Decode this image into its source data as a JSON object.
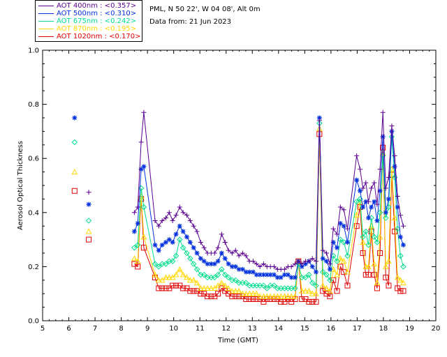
{
  "info": {
    "station": "PML, N 50 22', W 04 08', Alt 0m",
    "date_line": "Data from: 21 Jun 2023"
  },
  "colors": {
    "s400": "#5a0090",
    "s500": "#0030e0",
    "s675": "#00dc8c",
    "s870": "#ffd800",
    "s1020": "#e00000"
  },
  "chart_data": {
    "type": "line",
    "title": "",
    "xlabel": "Time (GMT)",
    "ylabel": "Aerosol Optical Thickness",
    "xlim": [
      5,
      20
    ],
    "ylim": [
      0.0,
      1.0
    ],
    "xticks": [
      5,
      6,
      7,
      8,
      9,
      10,
      11,
      12,
      13,
      14,
      15,
      16,
      17,
      18,
      19,
      20
    ],
    "yticks": [
      0.0,
      0.2,
      0.4,
      0.6,
      0.8,
      1.0
    ],
    "xtick_labels": [
      "5",
      "6",
      "7",
      "8",
      "9",
      "10",
      "11",
      "12",
      "13",
      "14",
      "15",
      "16",
      "17",
      "18",
      "19",
      "20"
    ],
    "ytick_labels": [
      "0.0",
      "0.2",
      "0.4",
      "0.6",
      "0.8",
      "1.0"
    ],
    "legend_placement": "top-left, outside plot",
    "x": [
      6.22,
      6.76,
      8.5,
      8.63,
      8.76,
      8.86,
      9.29,
      9.43,
      9.56,
      9.7,
      9.83,
      9.96,
      10.09,
      10.23,
      10.36,
      10.5,
      10.63,
      10.76,
      10.89,
      11.03,
      11.16,
      11.29,
      11.43,
      11.56,
      11.69,
      11.83,
      11.96,
      12.09,
      12.23,
      12.36,
      12.49,
      12.63,
      12.76,
      12.89,
      13.03,
      13.16,
      13.29,
      13.43,
      13.56,
      13.69,
      13.83,
      13.96,
      14.09,
      14.23,
      14.36,
      14.49,
      14.63,
      14.76,
      14.89,
      15.03,
      15.16,
      15.29,
      15.43,
      15.56,
      15.69,
      15.83,
      15.96,
      16.09,
      16.23,
      16.36,
      16.49,
      16.63,
      16.98,
      17.11,
      17.22,
      17.33,
      17.43,
      17.54,
      17.65,
      17.76,
      17.87,
      17.98,
      18.09,
      18.2,
      18.32,
      18.43,
      18.54,
      18.65,
      18.76
    ],
    "connect_from_index": 2,
    "series": [
      {
        "name": "AOT  400nm : <0.357>",
        "marker": "plus",
        "values": [
          null,
          0.475,
          0.4,
          0.42,
          0.66,
          0.77,
          0.37,
          0.35,
          0.37,
          0.38,
          0.4,
          0.37,
          0.39,
          0.42,
          0.4,
          0.39,
          0.37,
          0.35,
          0.33,
          0.29,
          0.27,
          0.25,
          0.25,
          0.25,
          0.27,
          0.32,
          0.29,
          0.26,
          0.25,
          0.26,
          0.24,
          0.25,
          0.24,
          0.22,
          0.22,
          0.21,
          0.2,
          0.21,
          0.2,
          0.2,
          0.2,
          0.19,
          0.19,
          0.19,
          0.2,
          0.2,
          0.21,
          0.22,
          0.21,
          0.22,
          0.22,
          0.23,
          0.22,
          0.74,
          0.26,
          0.25,
          0.21,
          0.34,
          0.32,
          0.42,
          0.41,
          0.34,
          0.61,
          0.56,
          0.49,
          0.51,
          0.44,
          0.49,
          0.51,
          0.43,
          0.56,
          0.77,
          0.49,
          0.53,
          0.72,
          0.61,
          0.46,
          0.39,
          0.35
        ]
      },
      {
        "name": "AOT  500nm : <0.310>",
        "marker": "star",
        "values": [
          0.75,
          0.43,
          0.33,
          0.36,
          0.56,
          0.57,
          0.28,
          0.26,
          0.28,
          0.29,
          0.3,
          0.29,
          0.32,
          0.35,
          0.33,
          0.31,
          0.29,
          0.27,
          0.25,
          0.23,
          0.22,
          0.21,
          0.21,
          0.21,
          0.22,
          0.25,
          0.23,
          0.21,
          0.2,
          0.2,
          0.19,
          0.19,
          0.18,
          0.18,
          0.18,
          0.17,
          0.17,
          0.17,
          0.17,
          0.17,
          0.17,
          0.16,
          0.16,
          0.17,
          0.17,
          0.16,
          0.16,
          0.22,
          0.2,
          0.21,
          0.22,
          0.2,
          0.18,
          0.75,
          0.23,
          0.22,
          0.19,
          0.29,
          0.27,
          0.36,
          0.35,
          0.29,
          0.52,
          0.48,
          0.42,
          0.44,
          0.38,
          0.42,
          0.44,
          0.37,
          0.48,
          0.68,
          0.4,
          0.45,
          0.7,
          0.57,
          0.42,
          0.31,
          0.28
        ]
      },
      {
        "name": "AOT  675nm : <0.242>",
        "marker": "diamond",
        "values": [
          0.66,
          0.37,
          0.27,
          0.28,
          0.49,
          0.42,
          0.21,
          0.2,
          0.21,
          0.21,
          0.22,
          0.22,
          0.24,
          0.3,
          0.27,
          0.25,
          0.23,
          0.21,
          0.19,
          0.17,
          0.17,
          0.16,
          0.16,
          0.16,
          0.17,
          0.19,
          0.17,
          0.16,
          0.15,
          0.15,
          0.14,
          0.14,
          0.14,
          0.13,
          0.13,
          0.13,
          0.13,
          0.13,
          0.12,
          0.13,
          0.13,
          0.12,
          0.12,
          0.12,
          0.12,
          0.12,
          0.12,
          0.21,
          0.16,
          0.16,
          0.17,
          0.14,
          0.13,
          0.73,
          0.18,
          0.17,
          0.15,
          0.24,
          0.22,
          0.3,
          0.29,
          0.24,
          0.44,
          0.45,
          0.31,
          0.33,
          0.28,
          0.38,
          0.31,
          0.29,
          0.4,
          0.61,
          0.38,
          0.42,
          0.68,
          0.53,
          0.34,
          0.24,
          0.2
        ]
      },
      {
        "name": "AOT  870nm : <0.195>",
        "marker": "triangle",
        "values": [
          0.55,
          0.33,
          0.23,
          0.22,
          0.46,
          0.31,
          0.17,
          0.15,
          0.15,
          0.16,
          0.16,
          0.16,
          0.17,
          0.19,
          0.17,
          0.16,
          0.15,
          0.15,
          0.14,
          0.12,
          0.12,
          0.12,
          0.12,
          0.12,
          0.13,
          0.14,
          0.13,
          0.12,
          0.11,
          0.11,
          0.11,
          0.1,
          0.1,
          0.1,
          0.1,
          0.1,
          0.09,
          0.09,
          0.09,
          0.09,
          0.09,
          0.09,
          0.09,
          0.09,
          0.09,
          0.09,
          0.09,
          0.22,
          0.11,
          0.11,
          0.11,
          0.1,
          0.1,
          0.71,
          0.13,
          0.12,
          0.11,
          0.19,
          0.17,
          0.23,
          0.22,
          0.18,
          0.39,
          0.44,
          0.29,
          0.2,
          0.2,
          0.35,
          0.21,
          0.14,
          0.31,
          0.62,
          0.2,
          0.22,
          0.56,
          0.38,
          0.16,
          0.15,
          0.14
        ]
      },
      {
        "name": "AOT 1020nm : <0.170>",
        "marker": "square",
        "values": [
          0.48,
          0.3,
          0.21,
          0.2,
          0.45,
          0.27,
          0.16,
          0.12,
          0.12,
          0.12,
          0.12,
          0.13,
          0.13,
          0.13,
          0.12,
          0.12,
          0.11,
          0.11,
          0.11,
          0.1,
          0.1,
          0.09,
          0.09,
          0.09,
          0.1,
          0.12,
          0.11,
          0.1,
          0.09,
          0.09,
          0.09,
          0.09,
          0.08,
          0.08,
          0.08,
          0.08,
          0.08,
          0.07,
          0.08,
          0.08,
          0.08,
          0.08,
          0.07,
          0.07,
          0.08,
          0.07,
          0.08,
          0.22,
          0.08,
          0.08,
          0.07,
          0.07,
          0.07,
          0.69,
          0.11,
          0.1,
          0.09,
          0.15,
          0.11,
          0.2,
          0.18,
          0.13,
          0.35,
          0.42,
          0.25,
          0.17,
          0.17,
          0.33,
          0.17,
          0.12,
          0.25,
          0.64,
          0.16,
          0.13,
          0.54,
          0.33,
          0.12,
          0.11,
          0.11
        ]
      }
    ]
  }
}
